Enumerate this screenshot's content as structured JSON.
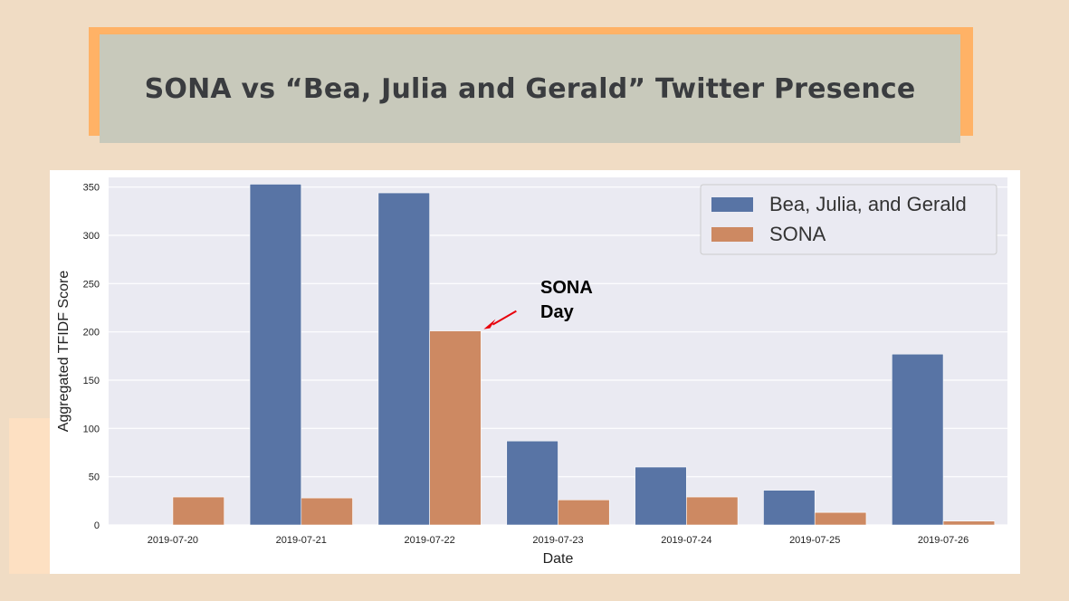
{
  "slide": {
    "title": "SONA vs “Bea, Julia and Gerald” Twitter Presence"
  },
  "colors": {
    "background": "#f0dcc4",
    "title_border": "#ffb266",
    "title_fill": "#c8c9bb",
    "plot_bg": "#eaeaf2",
    "series_1": "#5874a5",
    "series_2": "#cd8962",
    "arrow": "#e8000b"
  },
  "chart_data": {
    "type": "bar",
    "categories": [
      "2019-07-20",
      "2019-07-21",
      "2019-07-22",
      "2019-07-23",
      "2019-07-24",
      "2019-07-25",
      "2019-07-26"
    ],
    "series": [
      {
        "name": "Bea, Julia, and Gerald",
        "values": [
          0,
          353,
          344,
          87,
          60,
          36,
          177
        ]
      },
      {
        "name": "SONA",
        "values": [
          29,
          28,
          201,
          26,
          29,
          13,
          4
        ]
      }
    ],
    "xlabel": "Date",
    "ylabel": "Aggregated TFIDF Score",
    "ylim": [
      0,
      360
    ],
    "yticks": [
      0,
      50,
      100,
      150,
      200,
      250,
      300,
      350
    ],
    "grid": true,
    "legend": "top-right",
    "annotation": {
      "lines": [
        "SONA",
        "Day"
      ],
      "target_category": "2019-07-22",
      "target_series": "SONA"
    }
  }
}
